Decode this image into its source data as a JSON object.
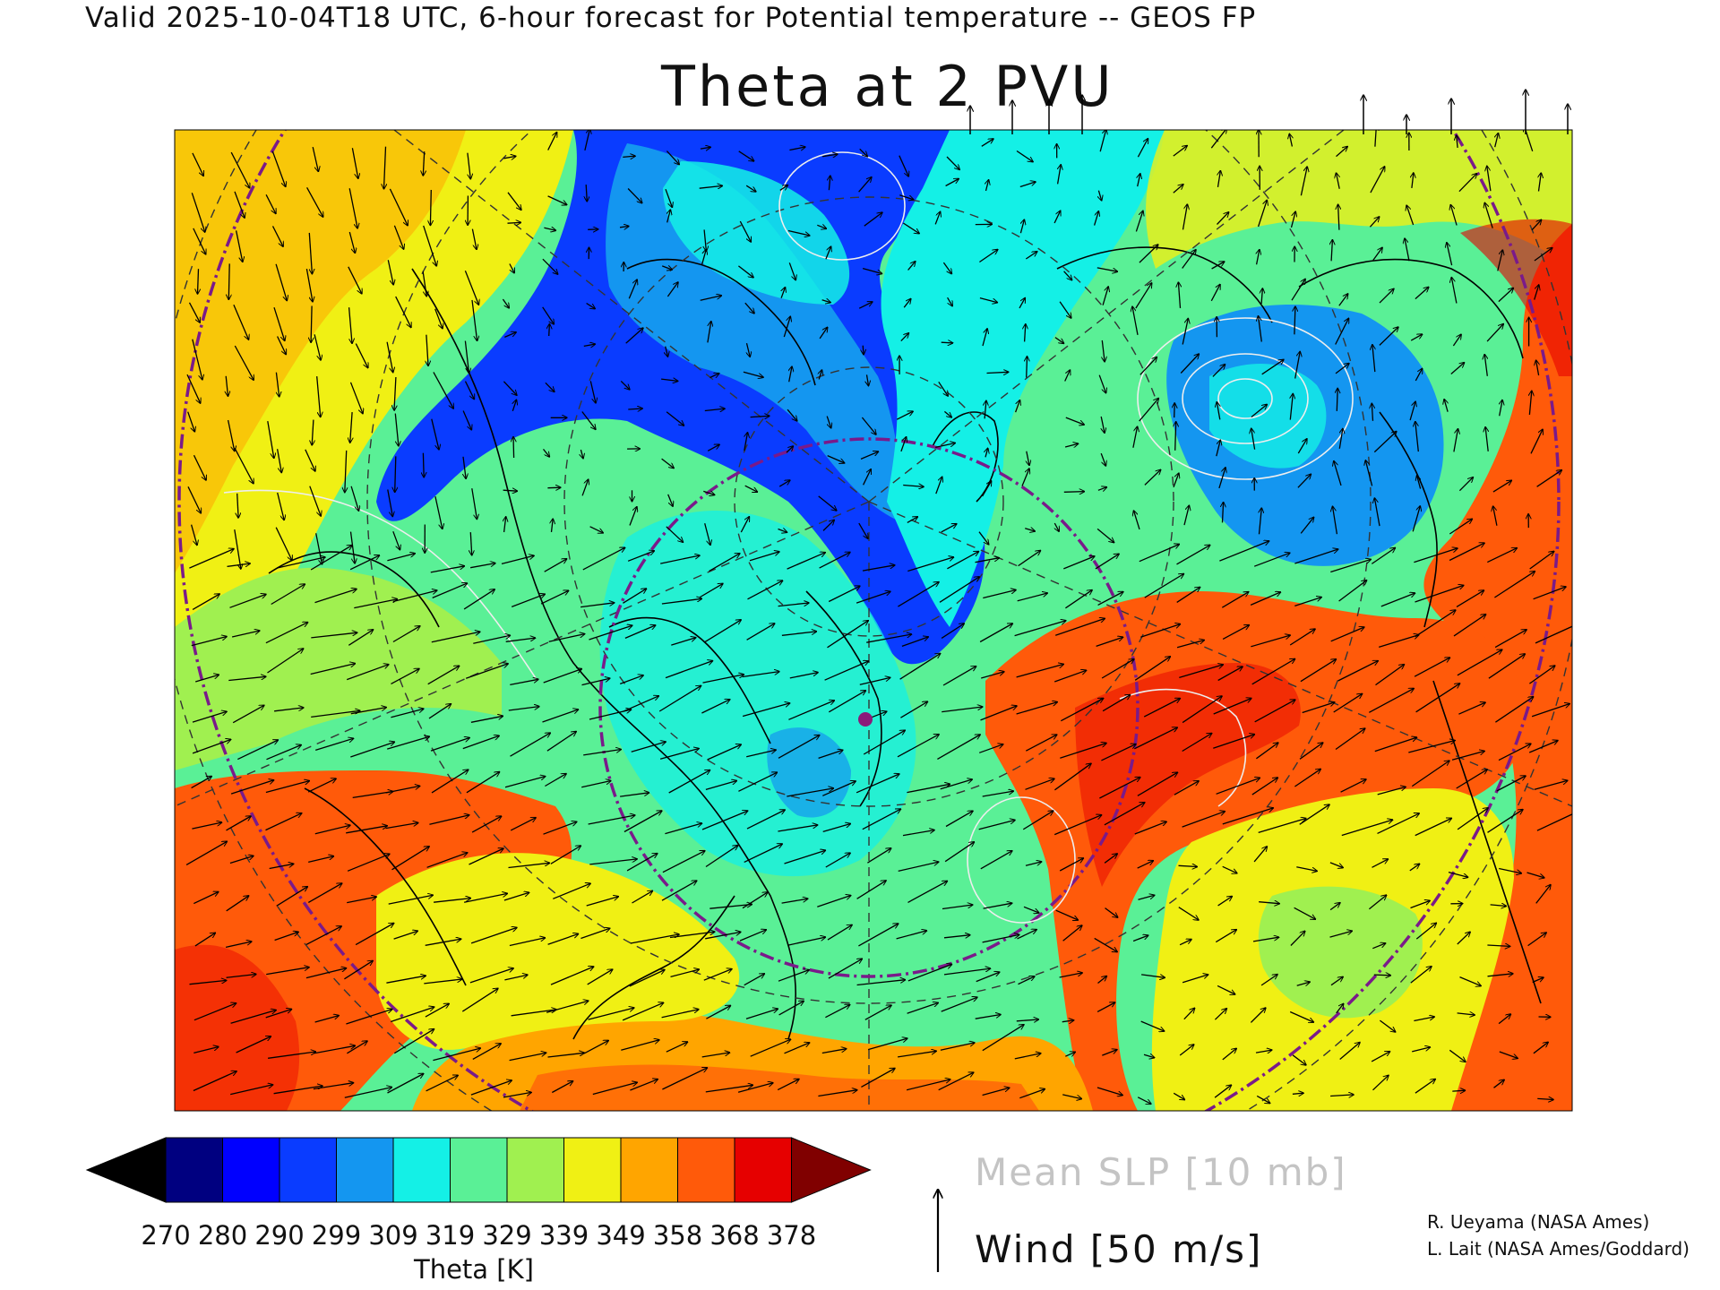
{
  "header": {
    "line": "Valid 2025-10-04T18 UTC, 6-hour forecast for Potential temperature -- GEOS FP"
  },
  "map": {
    "title": "Theta at 2 PVU",
    "variable": "Potential temperature on the 2 PVU surface",
    "projection": "north polar stereographic",
    "colors": [
      "#000000",
      "#000080",
      "#0000ff",
      "#0a3cff",
      "#1496f0",
      "#14f0e6",
      "#5af096",
      "#a0f050",
      "#f0f014",
      "#ffa500",
      "#ff5a0a",
      "#e60000",
      "#800000"
    ]
  },
  "colorbar": {
    "ticks": [
      "270",
      "280",
      "290",
      "299",
      "309",
      "319",
      "329",
      "339",
      "349",
      "358",
      "368",
      "378"
    ],
    "label": "Theta [K]"
  },
  "legend": {
    "slp_label": "Mean SLP [10 mb]",
    "wind_label": "Wind [50 m/s]",
    "wind_icon": "arrow-up-icon"
  },
  "credits": {
    "line1": "R. Ueyama (NASA Ames)",
    "line2": "L. Lait (NASA Ames/Goddard)"
  }
}
